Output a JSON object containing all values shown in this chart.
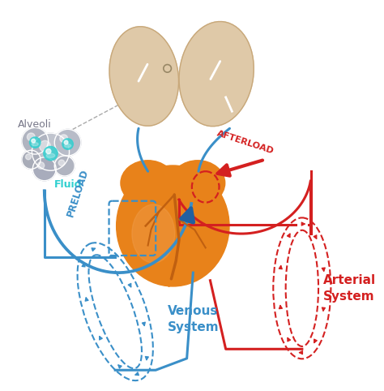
{
  "bg_color": "#ffffff",
  "lung_color": "#dfc9a8",
  "lung_shadow": "#c8a87a",
  "heart_color": "#e8821a",
  "heart_light": "#f0a050",
  "heart_dark": "#c06010",
  "blue": "#3a8fc8",
  "blue_dark": "#2060a0",
  "blue_arrow": "#2878c0",
  "red": "#d42020",
  "red_dark": "#aa0000",
  "cyan": "#30d0d0",
  "gray_bubble": "#b8bec8",
  "gray_bubble2": "#a8b0be",
  "white": "#ffffff",
  "gray_line": "#999999",
  "label_preload": "PRELOAD",
  "label_afterload": "AFTERLOAD",
  "label_venous": "Venous\nSystem",
  "label_arterial": "Arterial\nSystem",
  "label_alveoli": "Alveoli",
  "label_fluid": "Fluid",
  "figsize": [
    4.74,
    4.82
  ],
  "dpi": 100
}
